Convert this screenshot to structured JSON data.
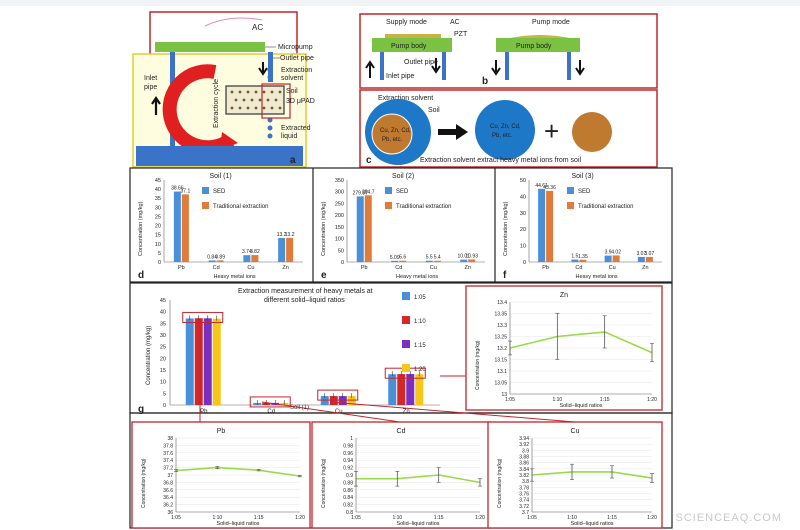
{
  "colors": {
    "sed": "#4a90d9",
    "trad": "#e07b39",
    "g_110": "#d62728",
    "g_115": "#7b2fbf",
    "g_120": "#f5c518",
    "g_105": "#4a90d9",
    "green": "#9ad94a",
    "frame": "#c0262c",
    "dark": "#222222"
  },
  "panel_a": {
    "ac": "AC",
    "micropump": "Micropump",
    "outlet": "Outlet pipe",
    "extraction_solvent": "Extraction solvent",
    "soil": "Soil",
    "upad": "3D μPAD",
    "extracted": "Extracted liquid",
    "inlet": "Inlet pipe",
    "cycle": "Extraction cycle",
    "letter": "a"
  },
  "panel_b": {
    "supply": "Supply mode",
    "ac": "AC",
    "pzt": "PZT",
    "pump_body": "Pump body",
    "pump_mode": "Pump mode",
    "outlet": "Outlet pipe",
    "inlet": "Inlet pipe",
    "letter": "b"
  },
  "panel_c": {
    "solvent": "Extraction solvent",
    "soil": "Soil",
    "ions_1": "Cu, Zn, Cd,",
    "ions_2": "Pb, etc.",
    "ions_3": "Cu, Zn, Cd,",
    "ions_4": "Pb, etc.",
    "caption": "Extraction solvent extract heavy metal ions from soil",
    "letter": "c"
  },
  "soil_panels": [
    {
      "letter": "d",
      "title": "Soil (1)",
      "ylabel": "Concentration (mg/kg)",
      "xlabel": "Heavy metal ions",
      "ymax": 45,
      "yticks": [
        "45",
        "40",
        "35",
        "30",
        "25",
        "20",
        "15",
        "10",
        "5",
        "0"
      ],
      "legend": [
        "SED",
        "Traditional extraction"
      ],
      "categories": [
        "Pb",
        "Cd",
        "Cu",
        "Zn"
      ],
      "sed": [
        38.66,
        0.84,
        3.74,
        13.2
      ],
      "trad": [
        37.1,
        0.89,
        3.82,
        13.2
      ],
      "sed_labels": [
        "38.66",
        "0.84",
        "3.74",
        "13.2"
      ],
      "trad_labels": [
        "37.1",
        "0.89",
        "3.82",
        "13.2"
      ]
    },
    {
      "letter": "e",
      "title": "Soil (2)",
      "ylabel": "Concentration (mg/kg)",
      "xlabel": "Heavy metal ions",
      "ymax": 350,
      "yticks": [
        "350",
        "300",
        "250",
        "200",
        "150",
        "100",
        "50",
        "0"
      ],
      "legend": [
        "SED",
        "Traditional extraction"
      ],
      "categories": [
        "Pb",
        "Cd",
        "Cu",
        "Zn"
      ],
      "sed": [
        279.97,
        5.09,
        5.5,
        10.01
      ],
      "trad": [
        284.7,
        5.6,
        5.4,
        10.93
      ],
      "sed_labels": [
        "279.97",
        "5.09",
        "5.5",
        "10.01"
      ],
      "trad_labels": [
        "284.7",
        "5.6",
        "5.4",
        "10.93"
      ]
    },
    {
      "letter": "f",
      "title": "Soil (3)",
      "ylabel": "Concentration (mg/kg)",
      "xlabel": "Heavy metal ions",
      "ymax": 50,
      "yticks": [
        "50",
        "40",
        "30",
        "20",
        "10",
        "0"
      ],
      "legend": [
        "SED",
        "Traditional extraction"
      ],
      "categories": [
        "Pb",
        "Cd",
        "Cu",
        "Zn"
      ],
      "sed": [
        44.61,
        1.5,
        3.9,
        3.07
      ],
      "trad": [
        43.36,
        1.35,
        4.02,
        3.07
      ],
      "sed_labels": [
        "44.61",
        "1.5",
        "3.9",
        "3.07"
      ],
      "trad_labels": [
        "43.36",
        "1.35",
        "4.02",
        "3.07"
      ]
    }
  ],
  "panel_g": {
    "letter": "g",
    "title_1": "Extraction measurement of heavy metals at",
    "title_2": "different solid–liquid ratios",
    "ylabel": "Concentration (mg/kg)",
    "ymax": 45,
    "yticks": [
      "45",
      "40",
      "35",
      "30",
      "25",
      "20",
      "15",
      "10",
      "5",
      "0"
    ],
    "categories": [
      "Pb",
      "Cd",
      "Cu",
      "Zn"
    ],
    "soil_label": "Soil (1)",
    "legend": [
      "1:05",
      "1:10",
      "1:15",
      "1:20"
    ],
    "series": [
      {
        "name": "1:05",
        "values": [
          37.1,
          0.89,
          3.82,
          13.2
        ]
      },
      {
        "name": "1:10",
        "values": [
          37.2,
          0.89,
          3.83,
          13.25
        ]
      },
      {
        "name": "1:15",
        "values": [
          37.15,
          0.9,
          3.83,
          13.27
        ]
      },
      {
        "name": "1:20",
        "values": [
          37.0,
          0.88,
          3.81,
          13.18
        ]
      }
    ]
  },
  "line_charts": [
    {
      "id": "zn",
      "title": "Zn",
      "ylabel": "Concentration (mg/kg)",
      "xlabel": "Solid–liquid ratios",
      "categories": [
        "1:05",
        "1:10",
        "1:15",
        "1:20"
      ],
      "values": [
        13.2,
        13.25,
        13.27,
        13.18
      ],
      "errors": [
        0.03,
        0.1,
        0.07,
        0.04
      ],
      "yticks": [
        "13.4",
        "13.35",
        "13.3",
        "13.25",
        "13.2",
        "13.15",
        "13.1",
        "13.05",
        "13"
      ],
      "ylim": [
        13.0,
        13.4
      ]
    },
    {
      "id": "pb",
      "title": "Pb",
      "ylabel": "Concentration (mg/kg)",
      "xlabel": "Solid–liquid ratios",
      "categories": [
        "1:05",
        "1:10",
        "1:15",
        "1:20"
      ],
      "values": [
        37.12,
        37.2,
        37.13,
        36.97
      ],
      "errors": [
        0.03,
        0.03,
        0.02,
        0.02
      ],
      "yticks": [
        "38",
        "37.8",
        "37.6",
        "37.4",
        "37.2",
        "37",
        "36.8",
        "36.6",
        "36.4",
        "36.2",
        "36"
      ],
      "ylim": [
        36.0,
        38.0
      ]
    },
    {
      "id": "cd",
      "title": "Cd",
      "ylabel": "Concentration (mg/kg)",
      "xlabel": "Solid–liquid ratios",
      "categories": [
        "1:05",
        "1:10",
        "1:15",
        "1:20"
      ],
      "values": [
        0.89,
        0.89,
        0.9,
        0.88
      ],
      "errors": [
        0.02,
        0.02,
        0.02,
        0.01
      ],
      "yticks": [
        "1",
        "0.98",
        "0.96",
        "0.94",
        "0.92",
        "0.9",
        "0.88",
        "0.86",
        "0.84",
        "0.82",
        "0.8"
      ],
      "ylim": [
        0.8,
        1.0
      ]
    },
    {
      "id": "cu",
      "title": "Cu",
      "ylabel": "Concentration (mg/kg)",
      "xlabel": "Solid–liquid ratios",
      "categories": [
        "1:05",
        "1:10",
        "1:15",
        "1:20"
      ],
      "values": [
        3.82,
        3.83,
        3.83,
        3.81
      ],
      "errors": [
        0.02,
        0.025,
        0.02,
        0.015
      ],
      "yticks": [
        "3.94",
        "3.92",
        "3.9",
        "3.88",
        "3.86",
        "3.84",
        "3.82",
        "3.8",
        "3.78",
        "3.76",
        "3.74",
        "3.72",
        "3.7"
      ],
      "ylim": [
        3.7,
        3.94
      ]
    }
  ],
  "watermark": "SCIENCEAQ.COM"
}
